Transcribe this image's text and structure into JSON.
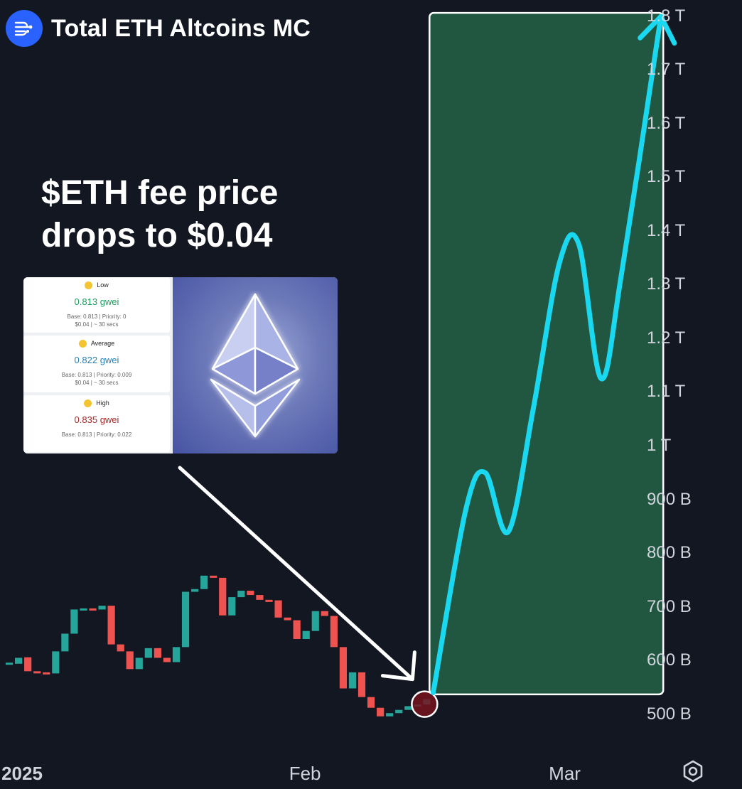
{
  "title": "Total ETH Altcoins MC",
  "headline": {
    "line1": "$ETH fee price",
    "line2": "drops to $0.04"
  },
  "inset": {
    "fees": [
      {
        "name": "Low",
        "gwei": "0.813 gwei",
        "detail": "Base: 0.813 | Priority: 0",
        "cost": "$0.04 | ~ 30 secs"
      },
      {
        "name": "Average",
        "gwei": "0.822 gwei",
        "detail": "Base: 0.813 | Priority: 0.009",
        "cost": "$0.04 | ~ 30 secs"
      },
      {
        "name": "High",
        "gwei": "0.835 gwei",
        "detail": "Base: 0.813 | Priority: 0.022",
        "cost": ""
      }
    ]
  },
  "colors": {
    "up": "#26a69a",
    "down": "#ef5350",
    "projection": "#1ad8ef",
    "box": "#215740",
    "background": "#131722"
  },
  "icons": {
    "logo": "stream-lines-icon",
    "settings": "gear-hexagon-icon",
    "arrow": "pointer-arrow-icon"
  },
  "chart_data": {
    "type": "candlestick",
    "title": "Total ETH Altcoins MC",
    "y_axis": {
      "ticks": [
        500,
        600,
        700,
        800,
        900,
        1000,
        1100,
        1200,
        1300,
        1400,
        1500,
        1600,
        1700,
        1800
      ],
      "tick_labels": [
        "500 B",
        "600 B",
        "700 B",
        "800 B",
        "900 B",
        "1 T",
        "1.1 T",
        "1.2 T",
        "1.3 T",
        "1.4 T",
        "1.5 T",
        "1.6 T",
        "1.7 T",
        "1.8 T"
      ],
      "unit": "B USD",
      "range": [
        460,
        1830
      ]
    },
    "x_axis": {
      "labels": [
        {
          "text": "2025",
          "day": 0,
          "bold": true
        },
        {
          "text": "Feb",
          "day": 31,
          "bold": false
        },
        {
          "text": "Mar",
          "day": 59,
          "bold": false
        }
      ],
      "range_days": [
        -2,
        75
      ]
    },
    "candles": [
      {
        "d": -1,
        "o": 596,
        "c": 596
      },
      {
        "d": 0,
        "o": 594,
        "c": 605
      },
      {
        "d": 1,
        "o": 606,
        "c": 580
      },
      {
        "d": 2,
        "o": 580,
        "c": 578
      },
      {
        "d": 3,
        "o": 578,
        "c": 576
      },
      {
        "d": 4,
        "o": 576,
        "c": 617
      },
      {
        "d": 5,
        "o": 617,
        "c": 650
      },
      {
        "d": 6,
        "o": 650,
        "c": 695
      },
      {
        "d": 7,
        "o": 695,
        "c": 697
      },
      {
        "d": 8,
        "o": 697,
        "c": 695
      },
      {
        "d": 9,
        "o": 695,
        "c": 702
      },
      {
        "d": 10,
        "o": 702,
        "c": 630
      },
      {
        "d": 11,
        "o": 630,
        "c": 617
      },
      {
        "d": 12,
        "o": 617,
        "c": 584
      },
      {
        "d": 13,
        "o": 584,
        "c": 605
      },
      {
        "d": 14,
        "o": 605,
        "c": 623
      },
      {
        "d": 15,
        "o": 623,
        "c": 605
      },
      {
        "d": 16,
        "o": 605,
        "c": 597
      },
      {
        "d": 17,
        "o": 597,
        "c": 625
      },
      {
        "d": 18,
        "o": 625,
        "c": 728
      },
      {
        "d": 19,
        "o": 728,
        "c": 733
      },
      {
        "d": 20,
        "o": 733,
        "c": 758
      },
      {
        "d": 21,
        "o": 758,
        "c": 754
      },
      {
        "d": 22,
        "o": 754,
        "c": 684
      },
      {
        "d": 23,
        "o": 684,
        "c": 718
      },
      {
        "d": 24,
        "o": 718,
        "c": 730
      },
      {
        "d": 25,
        "o": 730,
        "c": 722
      },
      {
        "d": 26,
        "o": 722,
        "c": 713
      },
      {
        "d": 27,
        "o": 713,
        "c": 712
      },
      {
        "d": 28,
        "o": 712,
        "c": 680
      },
      {
        "d": 29,
        "o": 680,
        "c": 675
      },
      {
        "d": 30,
        "o": 675,
        "c": 640
      },
      {
        "d": 31,
        "o": 640,
        "c": 655
      },
      {
        "d": 32,
        "o": 655,
        "c": 692
      },
      {
        "d": 33,
        "o": 692,
        "c": 683
      },
      {
        "d": 34,
        "o": 683,
        "c": 625
      },
      {
        "d": 35,
        "o": 625,
        "c": 548
      },
      {
        "d": 36,
        "o": 548,
        "c": 578
      },
      {
        "d": 37,
        "o": 578,
        "c": 532
      },
      {
        "d": 38,
        "o": 532,
        "c": 512
      },
      {
        "d": 39,
        "o": 512,
        "c": 496
      },
      {
        "d": 40,
        "o": 496,
        "c": 502
      },
      {
        "d": 41,
        "o": 502,
        "c": 508
      },
      {
        "d": 42,
        "o": 508,
        "c": 515
      },
      {
        "d": 43,
        "o": 515,
        "c": 518
      },
      {
        "d": 44,
        "o": 518,
        "c": 528
      }
    ],
    "projection": {
      "box": {
        "day_start": 44.3,
        "day_end": 69.5,
        "low": 537,
        "high": 1806
      },
      "path": [
        {
          "d": 44.7,
          "v": 540
        },
        {
          "d": 48.2,
          "v": 880
        },
        {
          "d": 50.3,
          "v": 950
        },
        {
          "d": 52.8,
          "v": 840
        },
        {
          "d": 55.5,
          "v": 1070
        },
        {
          "d": 58.3,
          "v": 1340
        },
        {
          "d": 60.4,
          "v": 1375
        },
        {
          "d": 62.8,
          "v": 1125
        },
        {
          "d": 65.0,
          "v": 1320
        },
        {
          "d": 68.9,
          "v": 1760
        }
      ]
    },
    "grid": false,
    "legend": "none"
  }
}
